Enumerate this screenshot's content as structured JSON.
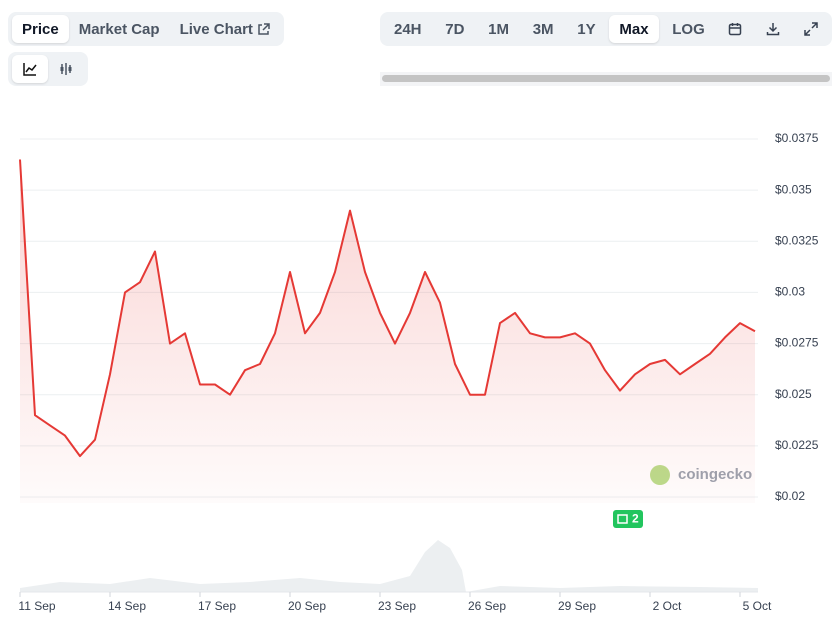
{
  "controls": {
    "tabs": [
      "Price",
      "Market Cap",
      "Live Chart"
    ],
    "ranges": [
      "24H",
      "7D",
      "1M",
      "3M",
      "1Y",
      "Max",
      "LOG"
    ],
    "badge": "2",
    "watermark": "coingecko"
  },
  "chart_data": {
    "type": "line",
    "categories": [
      "11 Sep",
      null,
      null,
      null,
      null,
      null,
      "14 Sep",
      null,
      null,
      null,
      null,
      null,
      "17 Sep",
      null,
      null,
      null,
      null,
      null,
      "20 Sep",
      null,
      null,
      null,
      null,
      null,
      "23 Sep",
      null,
      null,
      null,
      null,
      null,
      "26 Sep",
      null,
      null,
      null,
      null,
      null,
      "29 Sep",
      null,
      null,
      null,
      null,
      null,
      "2 Oct",
      null,
      null,
      null,
      null,
      null,
      "5 Oct",
      null
    ],
    "series": [
      {
        "name": "Price",
        "color": "#e53935",
        "values": [
          0.0365,
          0.024,
          0.0235,
          0.023,
          0.022,
          0.0228,
          0.026,
          0.03,
          0.0305,
          0.032,
          0.0275,
          0.028,
          0.0255,
          0.0255,
          0.025,
          0.0262,
          0.0265,
          0.028,
          0.031,
          0.028,
          0.029,
          0.031,
          0.034,
          0.031,
          0.029,
          0.0275,
          0.029,
          0.031,
          0.0295,
          0.0265,
          0.025,
          0.025,
          0.0285,
          0.029,
          0.028,
          0.0278,
          0.0278,
          0.028,
          0.0275,
          0.0262,
          0.0252,
          0.026,
          0.0265,
          0.0267,
          0.026,
          0.0265,
          0.027,
          0.0278,
          0.0285,
          0.0281
        ]
      }
    ],
    "ylim": [
      0.02,
      0.0375
    ],
    "yticks": [
      {
        "value": 0.02,
        "label": "$0.02"
      },
      {
        "value": 0.0225,
        "label": "$0.0225"
      },
      {
        "value": 0.025,
        "label": "$0.025"
      },
      {
        "value": 0.0275,
        "label": "$0.0275"
      },
      {
        "value": 0.03,
        "label": "$0.03"
      },
      {
        "value": 0.0325,
        "label": "$0.0325"
      },
      {
        "value": 0.035,
        "label": "$0.035"
      },
      {
        "value": 0.0375,
        "label": "$0.0375"
      }
    ],
    "grid": true
  }
}
